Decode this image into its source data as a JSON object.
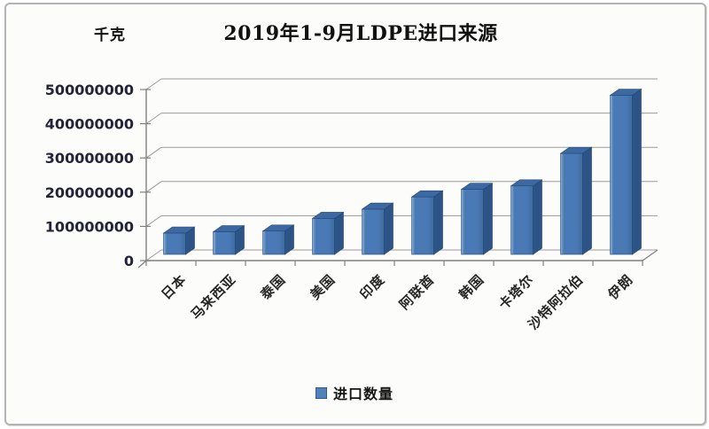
{
  "header": {
    "unit_label": "千克",
    "title": "2019年1-9月LDPE进口来源"
  },
  "legend": {
    "label": "进口数量",
    "swatch_color": "#4f81bd"
  },
  "chart_data": {
    "type": "bar",
    "style": "3d-column",
    "title": "2019年1-9月LDPE进口来源",
    "unit": "千克",
    "xlabel": "",
    "ylabel": "千克",
    "categories": [
      "日本",
      "马来西亚",
      "泰国",
      "美国",
      "印度",
      "阿联酋",
      "韩国",
      "卡塔尔",
      "沙特阿拉伯",
      "伊朗"
    ],
    "series": [
      {
        "name": "进口数量",
        "values": [
          62000000,
          66000000,
          68000000,
          105000000,
          132000000,
          168000000,
          190000000,
          200000000,
          295000000,
          465000000
        ]
      }
    ],
    "ylim": [
      0,
      500000000
    ],
    "ytick_interval": 100000000,
    "ytick_labels": [
      "0",
      "100000000",
      "200000000",
      "300000000",
      "400000000",
      "500000000"
    ],
    "grid": true,
    "legend_position": "bottom",
    "colors": {
      "bar_front": "#4a7ab6",
      "bar_front_highlight": "#93b5da",
      "bar_side": "#2d5486",
      "bar_top": "#3c69a3",
      "bar_outline": "#24476e",
      "gridline": "#9a9a9a",
      "axis": "#808080",
      "tick_label_color": "#23233a",
      "category_label_color": "#262626"
    }
  }
}
